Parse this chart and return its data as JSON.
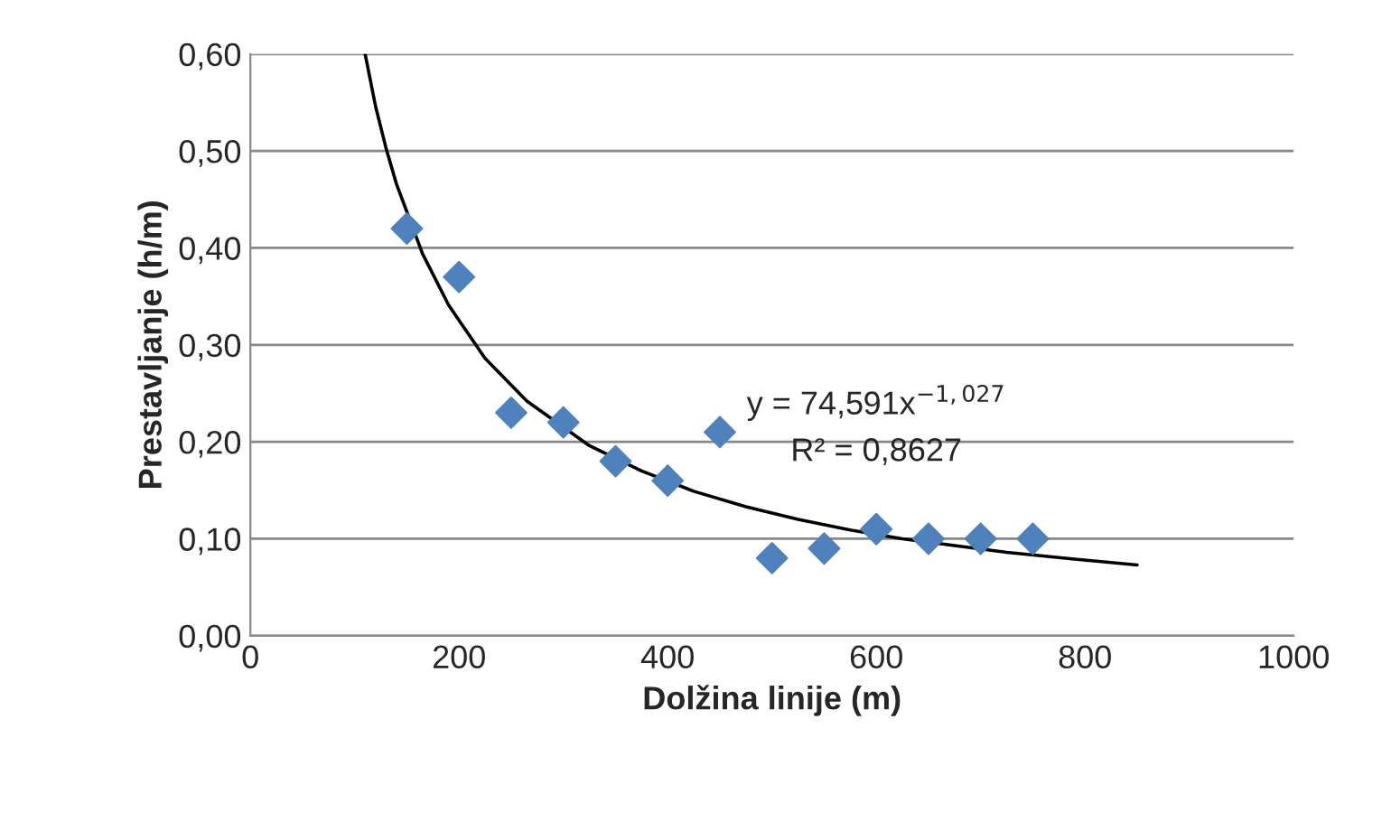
{
  "chart_data": {
    "type": "scatter",
    "xlabel": "Dolžina linije (m)",
    "ylabel": "Prestavljanje (h/m)",
    "x": [
      150,
      200,
      250,
      300,
      350,
      400,
      450,
      500,
      550,
      600,
      650,
      700,
      750
    ],
    "series": [
      {
        "color": "#4f81bd",
        "marker": "diamond",
        "values": [
          0.42,
          0.37,
          0.23,
          0.22,
          0.18,
          0.16,
          0.21,
          0.08,
          0.09,
          0.11,
          0.1,
          0.1,
          0.1
        ]
      },
      {
        "type": "line",
        "color": "#000000",
        "marker": "none",
        "line_style": "solid",
        "x": [
          110,
          120,
          130,
          140,
          165,
          190,
          225,
          265,
          325,
          375,
          425,
          475,
          525,
          575,
          625,
          675,
          725,
          790,
          850
        ],
        "values": [
          0.6,
          0.546,
          0.503,
          0.466,
          0.394,
          0.341,
          0.286,
          0.242,
          0.196,
          0.17,
          0.149,
          0.133,
          0.12,
          0.109,
          0.1,
          0.093,
          0.086,
          0.079,
          0.073
        ]
      }
    ],
    "annotations": [
      "y = 74,591x$^{−1,027}$",
      "R² = 0,8627"
    ],
    "xlim": [
      0,
      1000
    ],
    "xticks": [
      0,
      200,
      400,
      600,
      800,
      1000
    ],
    "ylim": [
      0,
      0.6
    ],
    "yticks": [
      {
        "value": 0,
        "label": "0,00"
      },
      {
        "value": 0.1,
        "label": "0,10"
      },
      {
        "value": 0.2,
        "label": "0,20"
      },
      {
        "value": 0.3,
        "label": "0,30"
      },
      {
        "value": 0.4,
        "label": "0,40"
      },
      {
        "value": 0.5,
        "label": "0,50"
      },
      {
        "value": 0.6,
        "label": "0,60"
      }
    ],
    "grid": "y",
    "legend": false
  }
}
